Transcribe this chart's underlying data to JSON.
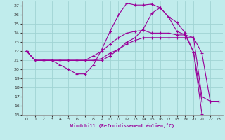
{
  "xlabel": "Windchill (Refroidissement éolien,°C)",
  "background_color": "#c0ecec",
  "grid_color": "#a0d4d4",
  "line_color": "#990099",
  "xlim": [
    -0.5,
    23.5
  ],
  "ylim": [
    15,
    27.5
  ],
  "yticks": [
    15,
    16,
    17,
    18,
    19,
    20,
    21,
    22,
    23,
    24,
    25,
    26,
    27
  ],
  "xticks": [
    0,
    1,
    2,
    3,
    4,
    5,
    6,
    7,
    8,
    9,
    10,
    11,
    12,
    13,
    14,
    15,
    16,
    17,
    18,
    19,
    20,
    21,
    22,
    23
  ],
  "lines": [
    {
      "x": [
        0,
        1,
        2,
        3,
        4,
        5,
        6,
        7,
        8,
        9,
        10,
        11,
        12,
        13,
        14,
        15,
        16,
        17,
        18,
        19,
        20,
        21
      ],
      "y": [
        22,
        21,
        21,
        21,
        20.5,
        20,
        19.5,
        19.5,
        20.5,
        22.2,
        24.2,
        26.0,
        27.3,
        27.1,
        27.1,
        27.2,
        26.8,
        25.8,
        24.2,
        23.8,
        21.9,
        16.5
      ]
    },
    {
      "x": [
        0,
        1,
        2,
        3,
        4,
        5,
        6,
        7,
        8,
        9,
        10,
        11,
        12,
        13,
        14,
        15,
        16,
        17,
        18,
        19,
        20,
        21,
        22,
        23
      ],
      "y": [
        22,
        21,
        21,
        21,
        21,
        21,
        21,
        21,
        21,
        21.2,
        21.8,
        22.2,
        22.8,
        23.2,
        23.5,
        23.5,
        23.5,
        23.5,
        23.5,
        23.5,
        23.5,
        21.8,
        16.5,
        16.5
      ]
    },
    {
      "x": [
        0,
        1,
        2,
        3,
        4,
        5,
        6,
        7,
        8,
        9,
        10,
        11,
        12,
        13,
        14,
        15,
        16,
        17,
        18,
        19,
        20,
        21,
        22,
        23
      ],
      "y": [
        22,
        21,
        21,
        21,
        21,
        21,
        21,
        21,
        21.5,
        22,
        22.8,
        23.5,
        24.0,
        24.2,
        24.3,
        24.0,
        24.0,
        24.0,
        23.8,
        23.8,
        23.5,
        17.0,
        16.5,
        16.5
      ]
    },
    {
      "x": [
        0,
        1,
        2,
        3,
        4,
        5,
        6,
        7,
        8,
        9,
        10,
        11,
        12,
        13,
        14,
        15,
        16,
        17,
        18,
        19,
        20,
        21
      ],
      "y": [
        22,
        21,
        21,
        21,
        21,
        21,
        21,
        21,
        21,
        21,
        21.5,
        22.2,
        23.0,
        23.5,
        24.5,
        26.2,
        26.8,
        25.8,
        25.2,
        24.0,
        21.9,
        15.1
      ]
    }
  ]
}
